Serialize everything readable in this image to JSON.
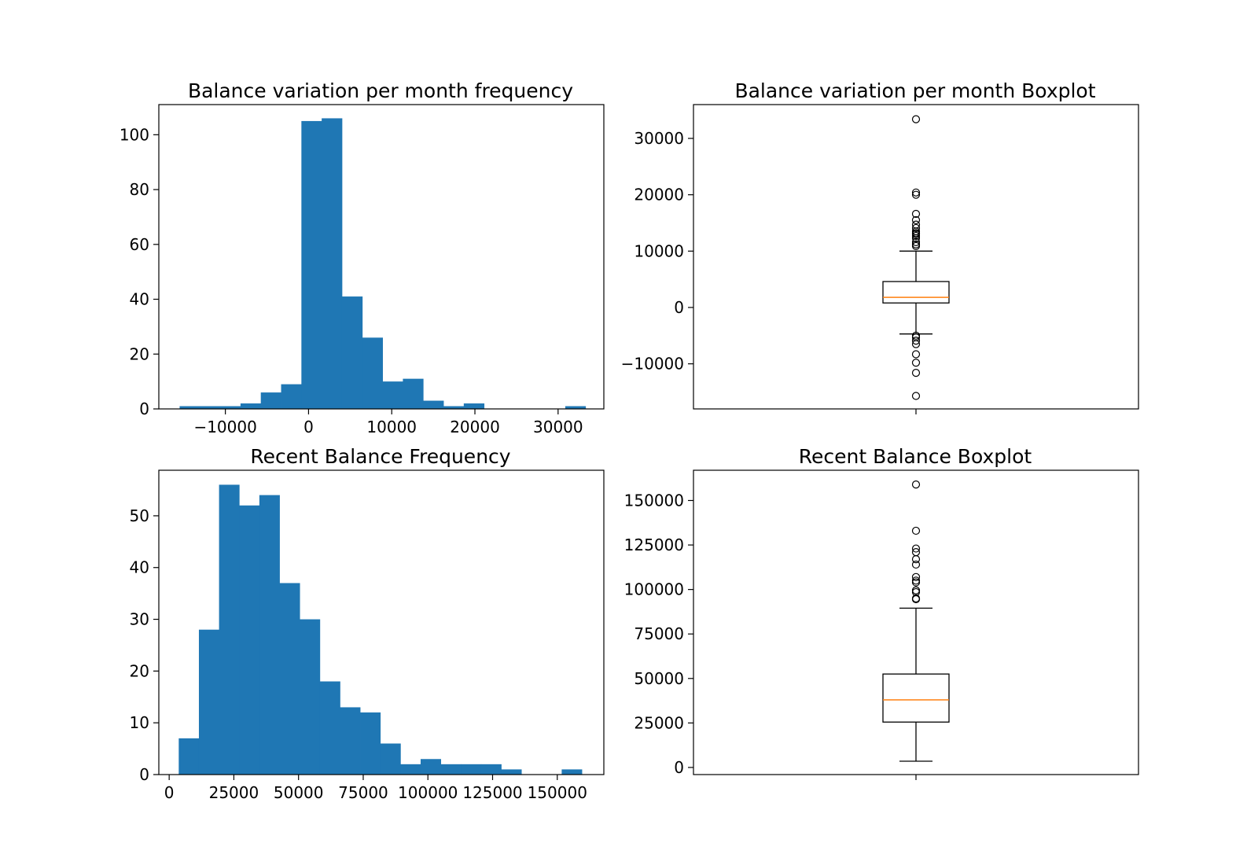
{
  "colors": {
    "bar_fill": "#1f77b4",
    "median": "#ff7f0e",
    "box_stroke": "#000000"
  },
  "chart_data": [
    {
      "type": "bar",
      "title": "Balance variation per month frequency",
      "xlabel": "",
      "ylabel": "",
      "xlim": [
        -18000,
        35500
      ],
      "ylim": [
        0,
        111
      ],
      "xticks": [
        -10000,
        0,
        10000,
        20000,
        30000
      ],
      "xtick_labels": [
        "−10000",
        "0",
        "10000",
        "20000",
        "30000"
      ],
      "yticks": [
        0,
        20,
        40,
        60,
        80,
        100
      ],
      "ytick_labels": [
        "0",
        "20",
        "40",
        "60",
        "80",
        "100"
      ],
      "bin_edges": [
        -15500,
        -13060,
        -10620,
        -8180,
        -5740,
        -3300,
        -860,
        1580,
        4020,
        6460,
        8900,
        11340,
        13780,
        16220,
        18660,
        21100,
        23540,
        25980,
        28420,
        30860,
        33300
      ],
      "values": [
        1,
        1,
        1,
        2,
        6,
        9,
        105,
        106,
        41,
        26,
        10,
        11,
        3,
        1,
        2,
        0,
        0,
        0,
        0,
        1
      ],
      "grid": false
    },
    {
      "type": "box",
      "title": "Balance variation per month Boxplot",
      "xlabel": "",
      "ylabel": "",
      "ylim": [
        -18000,
        36000
      ],
      "yticks": [
        -10000,
        0,
        10000,
        20000,
        30000
      ],
      "ytick_labels": [
        "−10000",
        "0",
        "10000",
        "20000",
        "30000"
      ],
      "box": {
        "whisker_low": -4700,
        "q1": 800,
        "median": 1800,
        "q3": 4600,
        "whisker_high": 10000
      },
      "outliers": [
        33400,
        20400,
        20000,
        16600,
        15500,
        14700,
        14100,
        13500,
        13200,
        13000,
        12700,
        12300,
        11600,
        11200,
        10900,
        -5000,
        -5300,
        -5900,
        -6500,
        -8300,
        -9800,
        -11600,
        -15700
      ],
      "grid": false
    },
    {
      "type": "bar",
      "title": "Recent Balance Frequency",
      "xlabel": "",
      "ylabel": "",
      "xlim": [
        -4000,
        168000
      ],
      "ylim": [
        0,
        58.8
      ],
      "xticks": [
        0,
        25000,
        50000,
        75000,
        100000,
        125000,
        150000
      ],
      "xtick_labels": [
        "0",
        "25000",
        "50000",
        "75000",
        "100000",
        "125000",
        "150000"
      ],
      "yticks": [
        0,
        10,
        20,
        30,
        40,
        50
      ],
      "ytick_labels": [
        "0",
        "10",
        "20",
        "30",
        "40",
        "50"
      ],
      "bin_edges": [
        3700,
        11490,
        19280,
        27070,
        34860,
        42650,
        50440,
        58230,
        66020,
        73810,
        81600,
        89390,
        97180,
        104970,
        112760,
        120550,
        128340,
        136130,
        143920,
        151710,
        159500
      ],
      "values": [
        7,
        28,
        56,
        52,
        54,
        37,
        30,
        18,
        13,
        12,
        6,
        2,
        3,
        2,
        2,
        2,
        1,
        0,
        0,
        1
      ],
      "grid": false
    },
    {
      "type": "box",
      "title": "Recent Balance Boxplot",
      "xlabel": "",
      "ylabel": "",
      "ylim": [
        -4000,
        167000
      ],
      "yticks": [
        0,
        25000,
        50000,
        75000,
        100000,
        125000,
        150000
      ],
      "ytick_labels": [
        "0",
        "25000",
        "50000",
        "75000",
        "100000",
        "125000",
        "150000"
      ],
      "box": {
        "whisker_low": 3500,
        "q1": 25500,
        "median": 38000,
        "q3": 52500,
        "whisker_high": 89500
      },
      "outliers": [
        159000,
        133000,
        123000,
        121000,
        117000,
        114000,
        107000,
        105000,
        104000,
        99500,
        98500,
        95000,
        94500
      ],
      "grid": false
    }
  ]
}
